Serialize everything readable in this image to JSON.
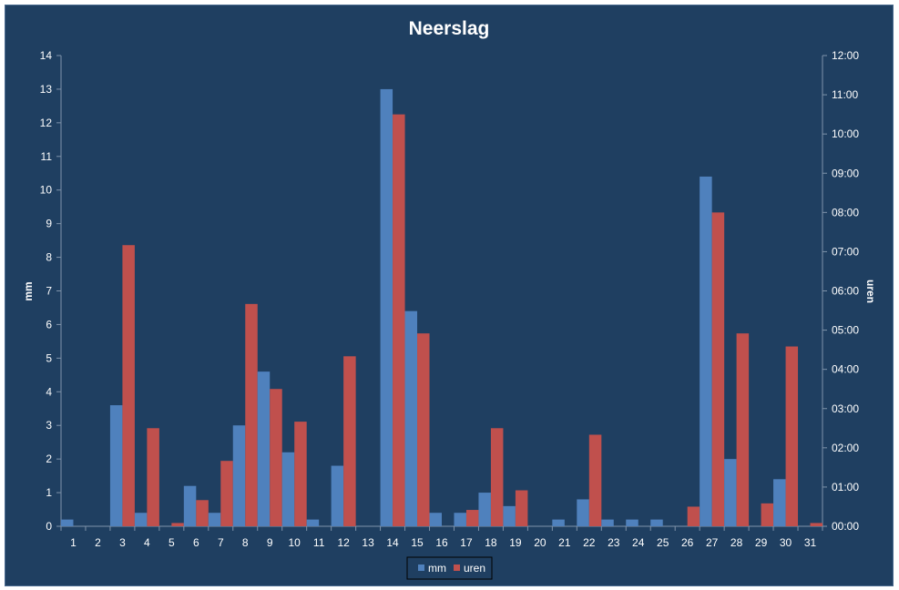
{
  "chart_data": {
    "type": "bar",
    "title": "Neerslag",
    "xlabel": "",
    "ylabel": "mm",
    "y2label": "uren",
    "categories": [
      "1",
      "2",
      "3",
      "4",
      "5",
      "6",
      "7",
      "8",
      "9",
      "10",
      "11",
      "12",
      "13",
      "14",
      "15",
      "16",
      "17",
      "18",
      "19",
      "20",
      "21",
      "22",
      "23",
      "24",
      "25",
      "26",
      "27",
      "28",
      "29",
      "30",
      "31"
    ],
    "ylim": [
      0,
      14
    ],
    "y2lim": [
      0,
      720
    ],
    "yticks": [
      "0",
      "1",
      "2",
      "3",
      "4",
      "5",
      "6",
      "7",
      "8",
      "9",
      "10",
      "11",
      "12",
      "13",
      "14"
    ],
    "y2ticks": [
      "00:00",
      "01:00",
      "02:00",
      "03:00",
      "04:00",
      "05:00",
      "06:00",
      "07:00",
      "08:00",
      "09:00",
      "10:00",
      "11:00",
      "12:00"
    ],
    "series": [
      {
        "name": "mm",
        "axis": "left",
        "unit": "mm",
        "color": "#4f81bd",
        "values": [
          0.2,
          0,
          3.6,
          0.4,
          0,
          1.2,
          0.4,
          3.0,
          4.6,
          2.2,
          0.2,
          1.8,
          0,
          13.0,
          6.4,
          0.4,
          0.4,
          1.0,
          0.6,
          0,
          0.2,
          0.8,
          0.2,
          0.2,
          0.2,
          0,
          10.4,
          2.0,
          0,
          1.4,
          0
        ]
      },
      {
        "name": "uren",
        "axis": "right",
        "unit": "minutes",
        "color": "#c0504d",
        "values": [
          0,
          0,
          430,
          150,
          5,
          40,
          100,
          340,
          210,
          160,
          0,
          260,
          0,
          630,
          295,
          0,
          25,
          150,
          55,
          0,
          0,
          140,
          0,
          0,
          0,
          30,
          480,
          295,
          35,
          275,
          5
        ]
      }
    ],
    "legend": {
      "position": "bottom",
      "entries": [
        "mm",
        "uren"
      ]
    },
    "grid": false
  }
}
